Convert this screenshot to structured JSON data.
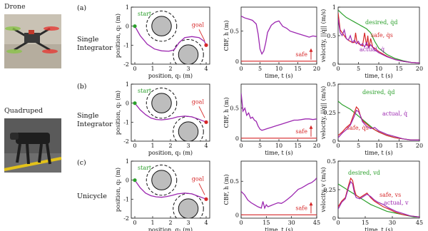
{
  "photos": [
    {
      "label": "Drone",
      "icon": "drone-photo"
    },
    {
      "label": "Quadruped",
      "icon": "quadruped-photo"
    }
  ],
  "rows": [
    {
      "letter": "(a)",
      "model": [
        "Single",
        "Integrator"
      ]
    },
    {
      "letter": "(b)",
      "model": [
        "Single",
        "Integrator"
      ]
    },
    {
      "letter": "(c)",
      "model": [
        "Unicycle"
      ]
    }
  ],
  "chart_data": [
    {
      "type": "line",
      "row": 0,
      "kind": "trajectory",
      "xlabel": "position, q₁ (m)",
      "ylabel": "position, q₂ (m)",
      "xlim": [
        -0.2,
        4.2
      ],
      "ylim": [
        -2,
        1
      ],
      "xticks": [
        "0",
        "1",
        "2",
        "3",
        "4"
      ],
      "yticks": [
        "1",
        "0",
        "-1",
        "-2"
      ],
      "obstacles": [
        {
          "cx": 1.5,
          "cy": 0,
          "r": 0.55,
          "margin_r": 0.85
        },
        {
          "cx": 3.0,
          "cy": -1.5,
          "r": 0.55,
          "margin_r": 0.85
        }
      ],
      "annotations": {
        "start": "start",
        "goal": "goal"
      },
      "series": [
        {
          "x": [
            0,
            0.3,
            0.7,
            1.1,
            1.5,
            1.9,
            2.2,
            2.5,
            2.8,
            3.2,
            3.6,
            3.9,
            4.0
          ],
          "y": [
            0,
            -0.5,
            -0.95,
            -1.2,
            -1.3,
            -1.32,
            -1.25,
            -0.85,
            -0.6,
            -0.55,
            -0.6,
            -0.8,
            -1.0
          ]
        }
      ]
    },
    {
      "type": "line",
      "row": 0,
      "kind": "cbf",
      "xlabel": "time, t (s)",
      "ylabel": "CBF, h (m)",
      "xlim": [
        0,
        20
      ],
      "ylim": [
        -0.05,
        0.9
      ],
      "xticks": [
        "0",
        "5",
        "10",
        "15",
        "20"
      ],
      "yticks": [
        "0",
        "0.5"
      ],
      "safe_label": "safe",
      "series": [
        {
          "x": [
            0,
            1,
            2,
            3,
            4,
            4.5,
            5,
            5.5,
            6,
            6.5,
            7,
            8,
            9,
            10,
            11,
            12,
            13,
            14,
            15,
            16,
            17,
            18,
            19,
            20
          ],
          "y": [
            0.75,
            0.72,
            0.7,
            0.68,
            0.62,
            0.45,
            0.2,
            0.12,
            0.17,
            0.3,
            0.48,
            0.6,
            0.65,
            0.67,
            0.58,
            0.55,
            0.5,
            0.48,
            0.46,
            0.44,
            0.42,
            0.4,
            0.42,
            0.41
          ]
        }
      ]
    },
    {
      "type": "line",
      "row": 0,
      "kind": "velocity",
      "xlabel": "time, t (s)",
      "ylabel": "velocity, ||q̇|| (m/s)",
      "xlim": [
        0,
        20
      ],
      "ylim": [
        0,
        1
      ],
      "xticks": [
        "0",
        "5",
        "10",
        "15",
        "20"
      ],
      "yticks": [
        "1",
        "0.5",
        "0"
      ],
      "labels": {
        "desired": "desired, q̇d",
        "safe": "safe, q̇s",
        "actual": "actual, q̇"
      },
      "series": [
        {
          "name": "desired, q̇d",
          "color": "#2ca02c",
          "x": [
            0,
            1,
            2,
            3,
            4,
            5,
            6,
            7,
            8,
            9,
            10,
            12,
            14,
            16,
            18,
            20
          ],
          "y": [
            0.95,
            0.88,
            0.82,
            0.78,
            0.74,
            0.7,
            0.66,
            0.62,
            0.55,
            0.4,
            0.28,
            0.17,
            0.1,
            0.06,
            0.03,
            0.02
          ]
        },
        {
          "name": "safe, q̇s",
          "color": "#d62728",
          "x": [
            0,
            0.5,
            1,
            1.5,
            2,
            2.5,
            3,
            3.5,
            4,
            4.3,
            4.6,
            5,
            5.5,
            6,
            6.5,
            7,
            7.3,
            7.6,
            8,
            8.5,
            9,
            10,
            12,
            14,
            16,
            18,
            20
          ],
          "y": [
            0.9,
            0.6,
            0.55,
            0.5,
            0.45,
            0.42,
            0.4,
            0.38,
            0.38,
            0.55,
            0.4,
            0.36,
            0.34,
            0.32,
            0.55,
            0.32,
            0.5,
            0.28,
            0.45,
            0.3,
            0.28,
            0.22,
            0.14,
            0.08,
            0.05,
            0.03,
            0.02
          ]
        },
        {
          "name": "actual, q̇",
          "color": "#9c27b0",
          "x": [
            0,
            0.5,
            1,
            1.5,
            2,
            2.5,
            3,
            3.5,
            4,
            4.5,
            5,
            5.5,
            6,
            6.5,
            7,
            7.5,
            8,
            9,
            10,
            12,
            14,
            16,
            18,
            20
          ],
          "y": [
            0.8,
            0.55,
            0.5,
            0.6,
            0.45,
            0.42,
            0.5,
            0.38,
            0.42,
            0.36,
            0.4,
            0.33,
            0.36,
            0.3,
            0.38,
            0.29,
            0.34,
            0.25,
            0.2,
            0.13,
            0.08,
            0.05,
            0.03,
            0.02
          ]
        }
      ]
    },
    {
      "type": "line",
      "row": 1,
      "kind": "trajectory",
      "xlabel": "position, q₁ (m)",
      "ylabel": "position, q₂ (m)",
      "xlim": [
        -0.2,
        4.2
      ],
      "ylim": [
        -2,
        1
      ],
      "xticks": [
        "0",
        "1",
        "2",
        "3",
        "4"
      ],
      "yticks": [
        "1",
        "0",
        "-1",
        "-2"
      ],
      "obstacles": [
        {
          "cx": 1.5,
          "cy": 0,
          "r": 0.55,
          "margin_r": 0.85
        },
        {
          "cx": 3.0,
          "cy": -1.5,
          "r": 0.55,
          "margin_r": 0.85
        }
      ],
      "annotations": {
        "start": "start",
        "goal": "goal"
      },
      "series": [
        {
          "x": [
            0,
            0.3,
            0.6,
            0.9,
            1.2,
            1.5,
            1.8,
            2.1,
            2.4,
            2.8,
            3.2,
            3.6,
            4.0
          ],
          "y": [
            0,
            -0.35,
            -0.6,
            -0.78,
            -0.86,
            -0.88,
            -0.85,
            -0.8,
            -0.72,
            -0.68,
            -0.72,
            -0.85,
            -1.0
          ]
        }
      ]
    },
    {
      "type": "line",
      "row": 1,
      "kind": "cbf",
      "xlabel": "time, t (s)",
      "ylabel": "CBF, h (m)",
      "xlim": [
        0,
        20
      ],
      "ylim": [
        -0.05,
        0.9
      ],
      "xticks": [
        "0",
        "5",
        "10",
        "15",
        "20"
      ],
      "yticks": [
        "0",
        "0.5"
      ],
      "safe_label": "safe",
      "series": [
        {
          "x": [
            0,
            0.5,
            1,
            1.5,
            2,
            2.5,
            3,
            3.5,
            4,
            4.5,
            5,
            5.5,
            6,
            7,
            8,
            9,
            10,
            11,
            12,
            13,
            14,
            15,
            16,
            17,
            18,
            19,
            20
          ],
          "y": [
            0.75,
            0.45,
            0.5,
            0.38,
            0.42,
            0.33,
            0.35,
            0.3,
            0.28,
            0.2,
            0.15,
            0.13,
            0.14,
            0.16,
            0.18,
            0.2,
            0.22,
            0.24,
            0.26,
            0.28,
            0.3,
            0.3,
            0.31,
            0.32,
            0.32,
            0.31,
            0.32
          ]
        }
      ]
    },
    {
      "type": "line",
      "row": 1,
      "kind": "velocity",
      "xlabel": "time, t (s)",
      "ylabel": "velocity, ||q̇|| (m/s)",
      "xlim": [
        0,
        20
      ],
      "ylim": [
        0,
        0.5
      ],
      "xticks": [
        "0",
        "5",
        "10",
        "15",
        "20"
      ],
      "yticks": [
        "0.5",
        "0.25",
        "0"
      ],
      "labels": {
        "desired": "desired, q̇d",
        "safe": "safe, q̇s",
        "actual": "actual, q̇"
      },
      "series": [
        {
          "name": "desired, q̇d",
          "color": "#2ca02c",
          "x": [
            0,
            1,
            2,
            3,
            4,
            5,
            6,
            7,
            8,
            9,
            10,
            12,
            14,
            16,
            18,
            20
          ],
          "y": [
            0.35,
            0.32,
            0.3,
            0.28,
            0.25,
            0.22,
            0.19,
            0.16,
            0.13,
            0.1,
            0.08,
            0.05,
            0.03,
            0.02,
            0.01,
            0.01
          ]
        },
        {
          "name": "safe, q̇s",
          "color": "#d62728",
          "x": [
            0,
            1,
            2,
            3,
            4,
            4.5,
            5,
            5.5,
            6,
            7,
            8,
            9,
            10,
            12,
            14,
            16,
            18,
            20
          ],
          "y": [
            0.05,
            0.08,
            0.12,
            0.15,
            0.25,
            0.3,
            0.28,
            0.22,
            0.18,
            0.15,
            0.12,
            0.1,
            0.08,
            0.05,
            0.03,
            0.02,
            0.01,
            0.01
          ]
        },
        {
          "name": "actual, q̇",
          "color": "#9c27b0",
          "x": [
            0,
            1,
            2,
            3,
            4,
            4.5,
            5,
            5.5,
            6,
            7,
            8,
            9,
            10,
            12,
            14,
            16,
            18,
            20
          ],
          "y": [
            0.03,
            0.07,
            0.1,
            0.14,
            0.22,
            0.27,
            0.26,
            0.22,
            0.17,
            0.13,
            0.11,
            0.12,
            0.09,
            0.06,
            0.04,
            0.02,
            0.01,
            0.01
          ]
        }
      ]
    },
    {
      "type": "line",
      "row": 2,
      "kind": "trajectory",
      "xlabel": "position, q₁ (m)",
      "ylabel": "position, q₂ (m)",
      "xlim": [
        -0.2,
        4.2
      ],
      "ylim": [
        -2,
        1
      ],
      "xticks": [
        "0",
        "1",
        "2",
        "3",
        "4"
      ],
      "yticks": [
        "1",
        "0",
        "-1",
        "-2"
      ],
      "obstacles": [
        {
          "cx": 1.5,
          "cy": 0,
          "r": 0.55,
          "margin_r": 0.85
        },
        {
          "cx": 3.0,
          "cy": -1.5,
          "r": 0.55,
          "margin_r": 0.85
        }
      ],
      "annotations": {
        "start": "start",
        "goal": "goal"
      },
      "series": [
        {
          "x": [
            0,
            0.3,
            0.6,
            0.9,
            1.2,
            1.5,
            1.8,
            2.1,
            2.4,
            2.8,
            3.2,
            3.6,
            4.0
          ],
          "y": [
            0,
            -0.4,
            -0.68,
            -0.82,
            -0.88,
            -0.9,
            -0.86,
            -0.8,
            -0.72,
            -0.68,
            -0.72,
            -0.86,
            -1.0
          ]
        }
      ]
    },
    {
      "type": "line",
      "row": 2,
      "kind": "cbf",
      "xlabel": "time, t (s)",
      "ylabel": "CBF, h (m)",
      "xlim": [
        0,
        45
      ],
      "ylim": [
        -0.05,
        0.8
      ],
      "xticks": [
        "0",
        "15",
        "30",
        "45"
      ],
      "yticks": [
        "0",
        "0.5"
      ],
      "safe_label": "safe",
      "series": [
        {
          "x": [
            0,
            2,
            4,
            6,
            8,
            10,
            12,
            13,
            14,
            15,
            16,
            18,
            20,
            22,
            24,
            26,
            28,
            30,
            32,
            34,
            36,
            38,
            40,
            42,
            44,
            45
          ],
          "y": [
            0.35,
            0.3,
            0.22,
            0.18,
            0.15,
            0.12,
            0.1,
            0.2,
            0.1,
            0.15,
            0.12,
            0.14,
            0.16,
            0.18,
            0.17,
            0.2,
            0.24,
            0.28,
            0.33,
            0.38,
            0.4,
            0.43,
            0.46,
            0.48,
            0.52,
            0.55
          ]
        }
      ]
    },
    {
      "type": "line",
      "row": 2,
      "kind": "velocity",
      "xlabel": "time, t (s)",
      "ylabel": "velocity, v (m/s)",
      "xlim": [
        0,
        45
      ],
      "ylim": [
        0,
        0.5
      ],
      "xticks": [
        "0",
        "15",
        "30",
        "45"
      ],
      "yticks": [
        "0.5",
        "0.25",
        "0"
      ],
      "labels": {
        "desired": "desired, vd",
        "safe": "safe, vs",
        "actual": "actual, v"
      },
      "series": [
        {
          "name": "desired, vd",
          "color": "#2ca02c",
          "x": [
            0,
            3,
            6,
            9,
            12,
            15,
            18,
            21,
            24,
            27,
            30,
            33,
            36,
            39,
            42,
            45
          ],
          "y": [
            0.3,
            0.27,
            0.24,
            0.21,
            0.18,
            0.15,
            0.12,
            0.1,
            0.08,
            0.06,
            0.05,
            0.04,
            0.03,
            0.02,
            0.01,
            0.01
          ]
        },
        {
          "name": "safe, vs",
          "color": "#d62728",
          "x": [
            0,
            2,
            4,
            6,
            7,
            8,
            9,
            10,
            12,
            14,
            16,
            18,
            20,
            22,
            25,
            28,
            32,
            36,
            40,
            45
          ],
          "y": [
            0.1,
            0.15,
            0.18,
            0.3,
            0.35,
            0.33,
            0.25,
            0.2,
            0.18,
            0.2,
            0.22,
            0.18,
            0.15,
            0.13,
            0.1,
            0.08,
            0.05,
            0.03,
            0.02,
            0.01
          ]
        },
        {
          "name": "actual, v",
          "color": "#9c27b0",
          "x": [
            0,
            2,
            4,
            6,
            7,
            8,
            9,
            10,
            12,
            14,
            16,
            18,
            20,
            22,
            25,
            28,
            32,
            36,
            40,
            45
          ],
          "y": [
            0.08,
            0.14,
            0.17,
            0.28,
            0.32,
            0.3,
            0.22,
            0.18,
            0.17,
            0.19,
            0.21,
            0.19,
            0.16,
            0.14,
            0.12,
            0.09,
            0.06,
            0.04,
            0.02,
            0.01
          ]
        }
      ]
    }
  ]
}
